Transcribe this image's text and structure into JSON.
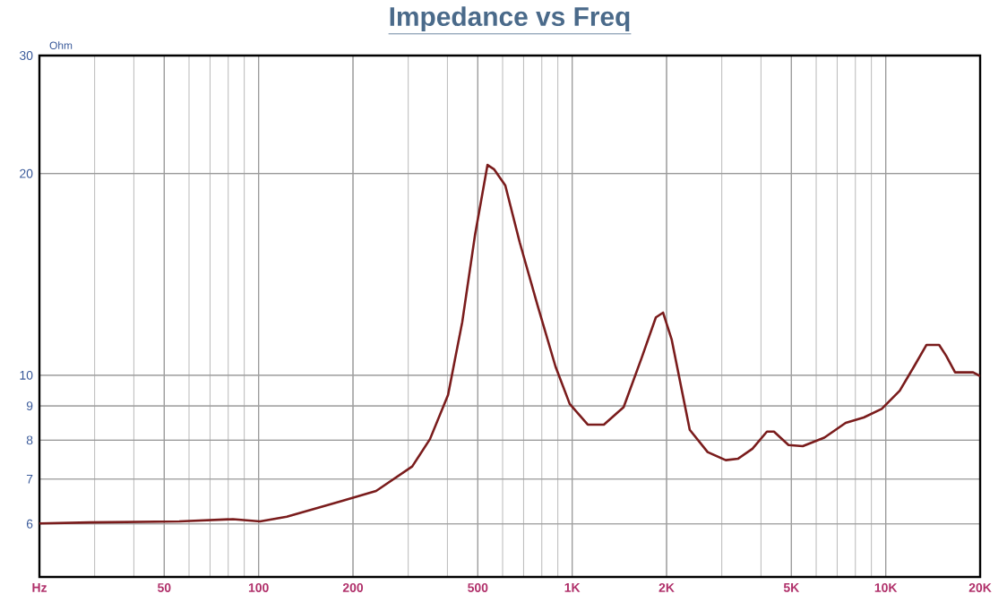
{
  "chart_data": {
    "type": "line",
    "title": "Impedance vs Freq",
    "ylabel": "Ohm",
    "log": "xy",
    "grid": true,
    "marker": "none",
    "line_style": "solid",
    "xlim": [
      20,
      20000
    ],
    "ylim": [
      5,
      30
    ],
    "xticks": [
      {
        "value": 20,
        "label": "Hz"
      },
      50,
      100,
      200,
      500,
      {
        "value": 1000,
        "label": "1K"
      },
      {
        "value": 2000,
        "label": "2K"
      },
      {
        "value": 5000,
        "label": "5K"
      },
      {
        "value": 10000,
        "label": "10K"
      },
      {
        "value": 20000,
        "label": "20K"
      }
    ],
    "yticks": [
      {
        "value": 5,
        "label": null
      },
      6,
      7,
      8,
      9,
      10,
      20,
      30
    ],
    "series": [
      {
        "color": "#7a1c1c",
        "x": [
          20,
          28.9,
          55.8,
          82.8,
          101,
          123,
          182,
          237,
          309,
          352,
          402,
          446,
          490,
          537,
          563,
          612,
          680,
          776,
          885,
          982,
          1121,
          1262,
          1459,
          1664,
          1849,
          1949,
          2077,
          2371,
          2704,
          3088,
          3384,
          3758,
          4179,
          4400,
          4897,
          5437,
          6369,
          7452,
          8508,
          9710,
          11080,
          12300,
          13490,
          14800,
          15570,
          16640,
          19000,
          20000
        ],
        "values": [
          6.01,
          6.03,
          6.05,
          6.1,
          6.05,
          6.15,
          6.48,
          6.72,
          7.31,
          8.03,
          9.35,
          12.0,
          16.2,
          20.6,
          20.3,
          19.2,
          15.8,
          12.7,
          10.3,
          9.06,
          8.44,
          8.44,
          8.96,
          10.6,
          12.2,
          12.4,
          11.3,
          8.29,
          7.68,
          7.47,
          7.51,
          7.77,
          8.24,
          8.24,
          7.87,
          7.84,
          8.07,
          8.49,
          8.65,
          8.91,
          9.48,
          10.3,
          11.1,
          11.1,
          10.7,
          10.1,
          10.1,
          9.97
        ]
      }
    ]
  }
}
